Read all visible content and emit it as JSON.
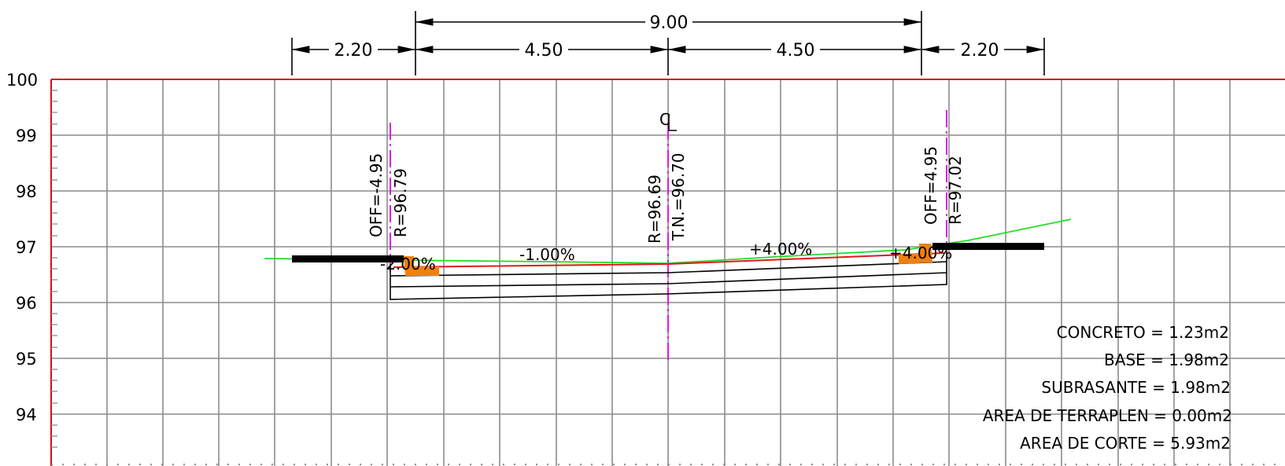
{
  "dimensions": {
    "top": "9.00",
    "left_shoulder": "2.20",
    "left_lane": "4.50",
    "right_lane": "4.50",
    "right_shoulder": "2.20"
  },
  "elevation_axis": {
    "ticks": [
      "100",
      "99",
      "98",
      "97",
      "96",
      "95",
      "94"
    ],
    "range": [
      93.5,
      100
    ]
  },
  "labels": {
    "left_offset": "OFF=-4.95",
    "left_elev": "R=96.79",
    "center_symbol": "C",
    "center_elev": "R=96.69",
    "center_tn": "T.N.=96.70",
    "right_offset": "OFF=4.95",
    "right_elev": "R=97.02"
  },
  "slopes": {
    "left_curb": "-2.00%",
    "left_lane": "-1.00%",
    "right_lane": "+4.00%",
    "right_curb": "+4.00%"
  },
  "areas": [
    "CONCRETO = 1.23m2",
    "BASE = 1.98m2",
    "SUBRASANTE = 1.98m2",
    "AREA DE TERRAPLEN = 0.00m2",
    "AREA DE CORTE = 5.93m2"
  ],
  "colors": {
    "grid": "#8c8c8c",
    "frame": "#d10f1f",
    "terrain": "#22dd22",
    "design": "#dd1a1a",
    "axis_markers": "#e01be0",
    "curbs": "#f08010",
    "pavement": "#000000"
  }
}
